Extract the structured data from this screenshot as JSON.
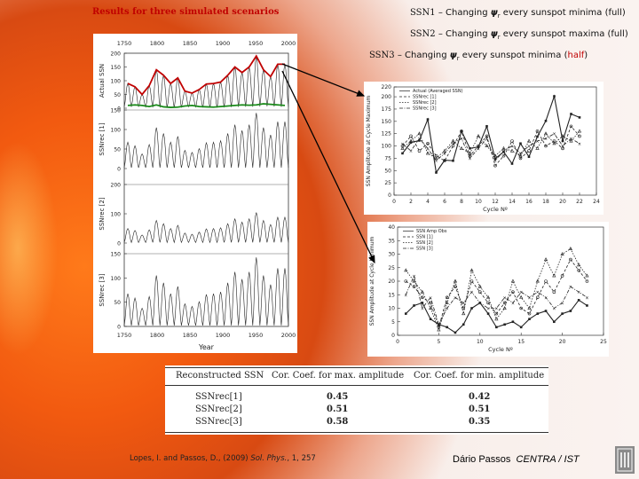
{
  "slide": {
    "title": "Results for three simulated scenarios",
    "scenarios": [
      {
        "label": "SSN1",
        "dash": " – Changing ",
        "psi": "ψ",
        "sub": "r",
        "rest": " every sunspot minima (full)"
      },
      {
        "label": "SSN2",
        "dash": " – Changing ",
        "psi": "ψ",
        "sub": "r",
        "rest": " every sunspot maxima (full)"
      },
      {
        "label": "SSN3",
        "dash": " – Changing ",
        "psi": "ψ",
        "sub": "r",
        "rest_a": " every sunspot minima (",
        "half": "half",
        "rest_b": ")"
      }
    ],
    "citation": {
      "authors": "Lopes, I. and Passos, D., (2009) ",
      "journal": "Sol. Phys.",
      "volume": ", 1, 257"
    },
    "author": "Dário Passos",
    "affiliation": "CENTRA / IST",
    "colors": {
      "title": "#c00000",
      "actual_ssn_line": "#c00000",
      "min_line": "#1a8a1a",
      "half": "#c00000"
    }
  },
  "table": {
    "headers": [
      "Reconstructed SSN",
      "Cor. Coef. for max. amplitude",
      "Cor. Coef. for min. amplitude"
    ],
    "rows": [
      {
        "name": "SSNrec[1]",
        "max": "0.45",
        "min": "0.42"
      },
      {
        "name": "SSNrec[2]",
        "max": "0.51",
        "min": "0.51"
      },
      {
        "name": "SSNrec[3]",
        "max": "0.58",
        "min": "0.35"
      }
    ]
  },
  "chart_data": [
    {
      "type": "line",
      "title": "",
      "xlabel": "Year",
      "x_ticks": [
        "1750",
        "1800",
        "1850",
        "1900",
        "1950",
        "2000"
      ],
      "panels": [
        {
          "ylabel": "Actual SSN",
          "y_ticks": [
            "0",
            "50",
            "100",
            "150",
            "200"
          ],
          "ylim": [
            0,
            200
          ]
        },
        {
          "ylabel": "SSNrec [1]",
          "y_ticks": [
            "0",
            "50",
            "100",
            "150"
          ],
          "ylim": [
            0,
            150
          ]
        },
        {
          "ylabel": "SSNrec [2]",
          "y_ticks": [
            "0",
            "100",
            "200"
          ],
          "ylim": [
            0,
            200
          ]
        },
        {
          "ylabel": "SSNrec [3]",
          "y_ticks": [
            "0",
            "50",
            "100",
            "150"
          ],
          "ylim": [
            0,
            150
          ]
        }
      ],
      "envelope_max": [
        90,
        78,
        50,
        82,
        140,
        120,
        90,
        110,
        62,
        55,
        68,
        88,
        90,
        95,
        120,
        150,
        130,
        150,
        190,
        140,
        115,
        160,
        160
      ],
      "envelope_min": [
        10,
        12,
        10,
        6,
        12,
        5,
        3,
        4,
        8,
        10,
        6,
        5,
        4,
        6,
        8,
        10,
        12,
        11,
        12,
        16,
        14,
        12,
        10
      ]
    },
    {
      "type": "line",
      "title": "",
      "xlabel": "Cycle Nº",
      "ylabel": "SSN Amplitude at Cycle Maximum",
      "legend": [
        "Actual (Averaged SSN)",
        "SSNrec [1]",
        "SSNrec [2]",
        "SSNrec [3]"
      ],
      "legend_position": "top-left",
      "xlim": [
        0,
        24
      ],
      "ylim": [
        0,
        220
      ],
      "x_ticks": [
        "0",
        "2",
        "4",
        "6",
        "8",
        "10",
        "12",
        "14",
        "16",
        "18",
        "20",
        "22",
        "24"
      ],
      "y_ticks": [
        "0",
        "25",
        "50",
        "75",
        "100",
        "125",
        "150",
        "175",
        "200",
        "220"
      ],
      "x": [
        1,
        2,
        3,
        4,
        5,
        6,
        7,
        8,
        9,
        10,
        11,
        12,
        13,
        14,
        15,
        16,
        17,
        18,
        19,
        20,
        21,
        22,
        23
      ],
      "series": [
        {
          "name": "Actual (Averaged SSN)",
          "values": [
            85,
            107,
            111,
            154,
            46,
            71,
            70,
            130,
            95,
            98,
            140,
            74,
            88,
            64,
            105,
            78,
            119,
            151,
            201,
            110,
            165,
            158,
            null
          ]
        },
        {
          "name": "SSNrec [1]",
          "values": [
            100,
            120,
            90,
            105,
            80,
            70,
            100,
            130,
            80,
            100,
            120,
            60,
            80,
            110,
            75,
            90,
            130,
            100,
            110,
            95,
            140,
            120,
            null
          ]
        },
        {
          "name": "SSNrec [2]",
          "values": [
            95,
            110,
            125,
            85,
            75,
            90,
            110,
            95,
            85,
            120,
            100,
            80,
            95,
            90,
            80,
            110,
            95,
            125,
            105,
            120,
            110,
            130,
            null
          ]
        },
        {
          "name": "SSNrec [3]",
          "values": [
            105,
            90,
            115,
            95,
            70,
            85,
            105,
            115,
            75,
            95,
            115,
            70,
            90,
            100,
            85,
            100,
            110,
            115,
            125,
            100,
            115,
            105,
            null
          ]
        }
      ]
    },
    {
      "type": "line",
      "title": "",
      "xlabel": "Cycle Nº",
      "ylabel": "SSN Amplitude at Cycle Minimum",
      "legend": [
        "SSN Amp Obs",
        "SSN [1]",
        "SSN [2]",
        "SSN [3]"
      ],
      "legend_position": "top-left",
      "xlim": [
        0,
        25
      ],
      "ylim": [
        0,
        40
      ],
      "x_ticks": [
        "0",
        "5",
        "10",
        "15",
        "20",
        "25"
      ],
      "y_ticks": [
        "0",
        "5",
        "10",
        "15",
        "20",
        "25",
        "30",
        "35",
        "40"
      ],
      "x": [
        1,
        2,
        3,
        4,
        5,
        6,
        7,
        8,
        9,
        10,
        11,
        12,
        13,
        14,
        15,
        16,
        17,
        18,
        19,
        20,
        21,
        22,
        23
      ],
      "series": [
        {
          "name": "SSN Amp Obs",
          "values": [
            8,
            11,
            12,
            6,
            4,
            3,
            1,
            4,
            10,
            12,
            8,
            3,
            4,
            5,
            3,
            6,
            8,
            9,
            5,
            8,
            9,
            13,
            11
          ]
        },
        {
          "name": "SSN [1]",
          "values": [
            20,
            18,
            14,
            12,
            3,
            14,
            18,
            10,
            20,
            16,
            12,
            8,
            12,
            16,
            10,
            8,
            14,
            20,
            16,
            22,
            28,
            24,
            20
          ]
        },
        {
          "name": "SSN [2]",
          "values": [
            24,
            20,
            16,
            10,
            2,
            12,
            20,
            8,
            24,
            18,
            14,
            6,
            10,
            20,
            14,
            10,
            20,
            28,
            22,
            30,
            32,
            26,
            22
          ]
        },
        {
          "name": "SSN [3]",
          "values": [
            15,
            22,
            10,
            14,
            4,
            10,
            14,
            12,
            16,
            12,
            10,
            10,
            14,
            12,
            16,
            14,
            16,
            14,
            10,
            12,
            18,
            16,
            14
          ]
        }
      ]
    }
  ]
}
